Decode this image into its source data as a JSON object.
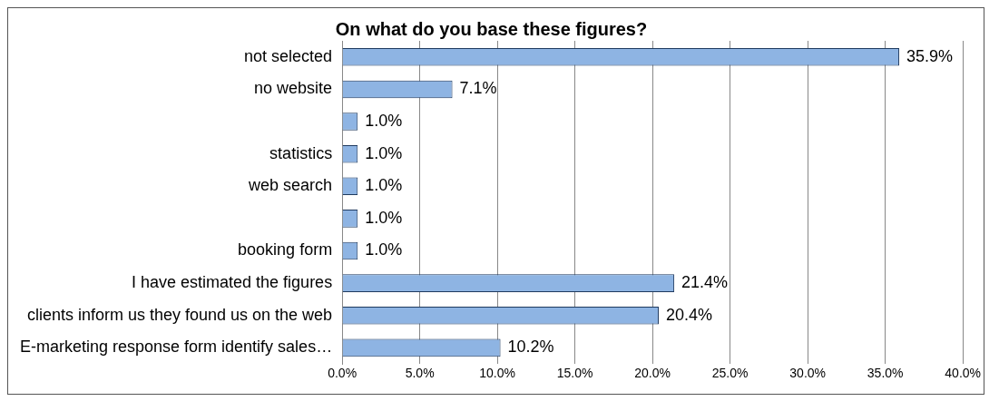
{
  "chart_data": {
    "type": "bar",
    "orientation": "horizontal",
    "title": "On what do you base these figures?",
    "categories": [
      "not selected",
      "no website",
      null,
      "statistics",
      "web search",
      null,
      "booking form",
      "I have estimated the figures",
      "clients inform us they found us on the web",
      "E-marketing response form identify sales…"
    ],
    "values": [
      35.9,
      7.1,
      1.0,
      1.0,
      1.0,
      1.0,
      1.0,
      21.4,
      20.4,
      10.2
    ],
    "value_labels": [
      "35.9%",
      "7.1%",
      "1.0%",
      "1.0%",
      "1.0%",
      "1.0%",
      "1.0%",
      "21.4%",
      "20.4%",
      "10.2%"
    ],
    "color": "#8eb4e3",
    "xlim": [
      0,
      40
    ],
    "xticks": [
      {
        "value": 0,
        "label": "0.0%"
      },
      {
        "value": 5,
        "label": "5.0%"
      },
      {
        "value": 10,
        "label": "10.0%"
      },
      {
        "value": 15,
        "label": "15.0%"
      },
      {
        "value": 20,
        "label": "20.0%"
      },
      {
        "value": 25,
        "label": "25.0%"
      },
      {
        "value": 30,
        "label": "30.0%"
      },
      {
        "value": 35,
        "label": "35.0%"
      },
      {
        "value": 40,
        "label": "40.0%"
      }
    ],
    "grid": "x",
    "legend": false
  }
}
